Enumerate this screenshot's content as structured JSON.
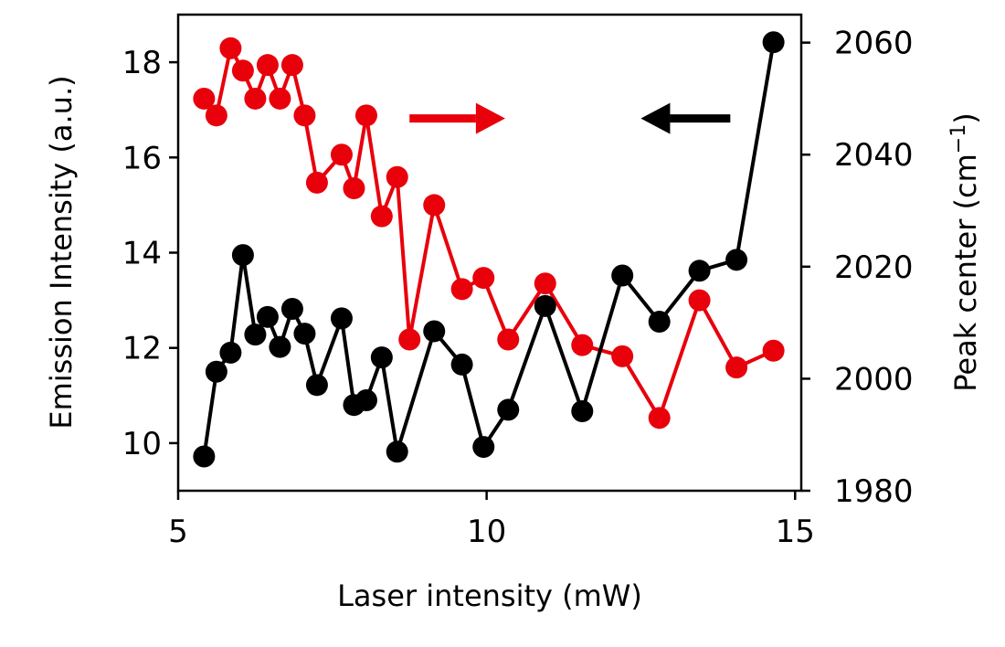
{
  "chart_data": {
    "type": "line",
    "xlabel": "Laser intensity (mW)",
    "ylabel_left": "Emission Intensity (a.u.)",
    "ylabel_right_base": "Peak center (cm",
    "ylabel_right_sup": "−1",
    "ylabel_right_end": ")",
    "xlim": [
      5,
      15.1
    ],
    "ylim_left": [
      9,
      19
    ],
    "ylim_right": [
      1980,
      2065
    ],
    "xticks": [
      "5",
      "10",
      "15"
    ],
    "yticks_left": [
      "10",
      "12",
      "14",
      "16",
      "18"
    ],
    "yticks_right": [
      "1980",
      "2000",
      "2020",
      "2040",
      "2060"
    ],
    "grid": false,
    "series": [
      {
        "axis": "left",
        "color": "#000000",
        "x": [
          5.42,
          5.62,
          5.85,
          6.05,
          6.25,
          6.45,
          6.65,
          6.85,
          7.05,
          7.25,
          7.65,
          7.85,
          8.05,
          8.3,
          8.55,
          9.15,
          9.6,
          9.95,
          10.35,
          10.95,
          11.55,
          12.2,
          12.8,
          13.45,
          14.05,
          14.65
        ],
        "y": [
          9.72,
          11.5,
          11.9,
          13.95,
          12.28,
          12.65,
          12.02,
          12.82,
          12.3,
          11.22,
          12.62,
          10.8,
          10.9,
          11.8,
          9.82,
          12.35,
          11.65,
          9.92,
          10.7,
          12.88,
          10.67,
          13.52,
          12.55,
          13.62,
          13.85,
          18.42
        ]
      },
      {
        "axis": "right",
        "color": "#e8000b",
        "x": [
          5.42,
          5.62,
          5.85,
          6.05,
          6.25,
          6.45,
          6.65,
          6.85,
          7.05,
          7.25,
          7.65,
          7.85,
          8.05,
          8.3,
          8.55,
          8.75,
          9.15,
          9.6,
          9.95,
          10.35,
          10.95,
          11.55,
          12.2,
          12.8,
          13.45,
          14.05,
          14.65
        ],
        "y": [
          2050,
          2047,
          2059,
          2055,
          2050,
          2056,
          2050,
          2056,
          2047,
          2035,
          2040,
          2034,
          2047,
          2029,
          2036,
          2007,
          2031,
          2016,
          2018,
          2007,
          2017,
          2006,
          2004,
          1993,
          2014,
          2002,
          2005
        ]
      }
    ],
    "annotations": [
      {
        "type": "arrow",
        "direction": "right",
        "color": "#e8000b",
        "meaning": "red series uses right axis"
      },
      {
        "type": "arrow",
        "direction": "left",
        "color": "#000000",
        "meaning": "black series uses left axis"
      }
    ]
  }
}
